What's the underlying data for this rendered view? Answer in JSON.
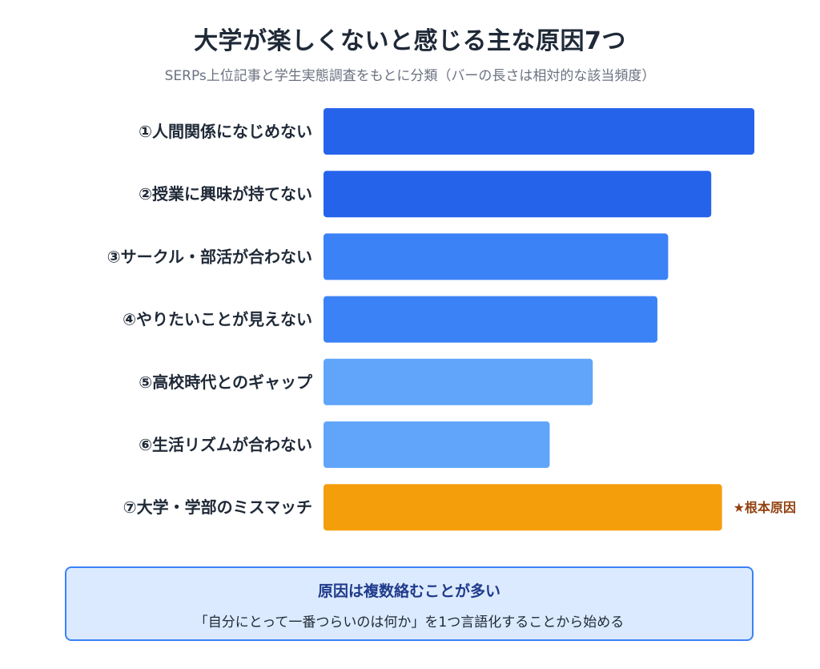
{
  "header": {
    "title": "大学が楽しくないと感じる主な原因7つ",
    "subtitle": "SERPs上位記事と学生実態調査をもとに分類（バーの長さは相対的な該当頻度）"
  },
  "chart_data": {
    "type": "bar",
    "orientation": "horizontal",
    "categories": [
      "①人間関係になじめない",
      "②授業に興味が持てない",
      "③サークル・部活が合わない",
      "④やりたいことが見えない",
      "⑤高校時代とのギャップ",
      "⑥生活リズムが合わない",
      "⑦大学・学部のミスマッチ"
    ],
    "values": [
      100,
      90,
      80,
      77.5,
      62.5,
      52.5,
      92.5
    ],
    "colors": [
      "#2563eb",
      "#2563eb",
      "#3b82f6",
      "#3b82f6",
      "#60a5fa",
      "#60a5fa",
      "#f59e0b"
    ],
    "xlim": [
      0,
      100
    ],
    "annotations": [
      {
        "category_index": 6,
        "text": "★根本原因",
        "color": "#92400e"
      }
    ],
    "grid": false,
    "legend": "none"
  },
  "note": {
    "title": "原因は複数絡むことが多い",
    "text": "「自分にとって一番つらいのは何か」を1つ言語化することから始める"
  }
}
